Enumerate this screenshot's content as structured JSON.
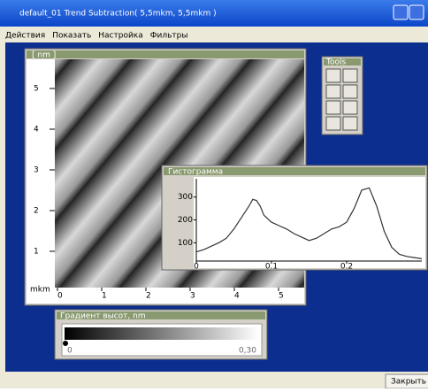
{
  "window": {
    "title": "default_01 Trend Subtraction( 5,5mkm, 5,5mkm )",
    "close_button": "Закрыть"
  },
  "menu": [
    "Действия",
    "Показать",
    "Настройка",
    "Фильтры"
  ],
  "image_window": {
    "title": "[ nm ]",
    "y_ticks": [
      5,
      4,
      3,
      2,
      1
    ],
    "x_ticks": [
      0,
      1,
      2,
      3,
      4,
      5
    ],
    "unit": "mkm"
  },
  "tools": {
    "title": "Tools"
  },
  "histogram": {
    "type": "line",
    "title": "Гистограмма",
    "x": [
      0,
      0.01,
      0.02,
      0.03,
      0.04,
      0.05,
      0.06,
      0.07,
      0.075,
      0.08,
      0.085,
      0.09,
      0.1,
      0.11,
      0.12,
      0.13,
      0.14,
      0.15,
      0.16,
      0.17,
      0.18,
      0.19,
      0.2,
      0.21,
      0.22,
      0.23,
      0.24,
      0.25,
      0.26,
      0.27,
      0.28,
      0.29,
      0.3
    ],
    "values": [
      60,
      70,
      85,
      100,
      120,
      160,
      210,
      260,
      290,
      285,
      260,
      220,
      190,
      175,
      160,
      140,
      125,
      110,
      120,
      140,
      160,
      170,
      190,
      250,
      330,
      340,
      260,
      150,
      80,
      50,
      40,
      35,
      30
    ],
    "xlim": [
      0,
      0.3
    ],
    "ylim": [
      20,
      380
    ],
    "xticks": [
      0,
      0.1,
      0.2
    ],
    "yticks": [
      100,
      200,
      300
    ]
  },
  "gradient": {
    "title": "Градиент высот, nm",
    "min_label": "0",
    "max_label": "0,30"
  }
}
